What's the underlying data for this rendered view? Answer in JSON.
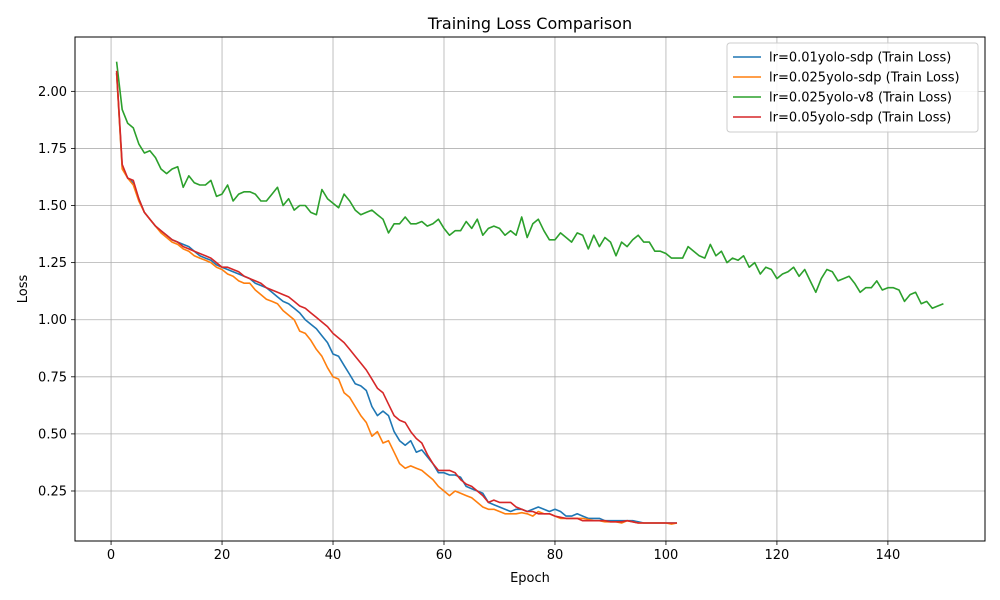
{
  "chart_data": {
    "type": "line",
    "title": "Training Loss Comparison",
    "xlabel": "Epoch",
    "ylabel": "Loss",
    "xlim": [
      -6.5,
      157.5
    ],
    "ylim": [
      0.031,
      2.238
    ],
    "xticks": [
      0,
      20,
      40,
      60,
      80,
      100,
      120,
      140
    ],
    "yticks": [
      0.25,
      0.5,
      0.75,
      1.0,
      1.25,
      1.5,
      1.75,
      2.0
    ],
    "ytick_labels": [
      "0.25",
      "0.50",
      "0.75",
      "1.00",
      "1.25",
      "1.50",
      "1.75",
      "2.00"
    ],
    "grid": true,
    "legend_position": "top-right",
    "series": [
      {
        "name": "lr=0.01yolo-sdp (Train Loss)",
        "color": "#1f77b4",
        "x": [
          1,
          2,
          3,
          4,
          5,
          6,
          7,
          8,
          9,
          10,
          11,
          12,
          13,
          14,
          15,
          16,
          17,
          18,
          19,
          20,
          21,
          22,
          23,
          24,
          25,
          26,
          27,
          28,
          29,
          30,
          31,
          32,
          33,
          34,
          35,
          36,
          37,
          38,
          39,
          40,
          41,
          42,
          43,
          44,
          45,
          46,
          47,
          48,
          49,
          50,
          51,
          52,
          53,
          54,
          55,
          56,
          57,
          58,
          59,
          60,
          61,
          62,
          63,
          64,
          65,
          66,
          67,
          68,
          69,
          70,
          71,
          72,
          73,
          74,
          75,
          76,
          77,
          78,
          79,
          80,
          81,
          82,
          83,
          84,
          85,
          86,
          87,
          88,
          89,
          90,
          91,
          92,
          93,
          94,
          95,
          96,
          97,
          98,
          99,
          100,
          101,
          102
        ],
        "y": [
          2.08,
          1.67,
          1.62,
          1.6,
          1.53,
          1.47,
          1.44,
          1.41,
          1.39,
          1.37,
          1.35,
          1.34,
          1.33,
          1.32,
          1.3,
          1.28,
          1.27,
          1.26,
          1.24,
          1.23,
          1.22,
          1.21,
          1.2,
          1.19,
          1.18,
          1.16,
          1.15,
          1.14,
          1.12,
          1.1,
          1.08,
          1.07,
          1.05,
          1.03,
          1.0,
          0.98,
          0.96,
          0.93,
          0.9,
          0.85,
          0.84,
          0.8,
          0.76,
          0.72,
          0.71,
          0.69,
          0.62,
          0.58,
          0.6,
          0.58,
          0.51,
          0.47,
          0.45,
          0.47,
          0.42,
          0.43,
          0.4,
          0.37,
          0.33,
          0.33,
          0.32,
          0.32,
          0.31,
          0.27,
          0.26,
          0.25,
          0.24,
          0.2,
          0.19,
          0.18,
          0.17,
          0.16,
          0.17,
          0.17,
          0.16,
          0.17,
          0.18,
          0.17,
          0.16,
          0.17,
          0.16,
          0.14,
          0.14,
          0.15,
          0.14,
          0.13,
          0.13,
          0.13,
          0.12,
          0.12,
          0.12,
          0.12,
          0.12,
          0.12,
          0.115,
          0.11,
          0.11,
          0.11,
          0.11,
          0.11,
          0.11,
          0.11
        ]
      },
      {
        "name": "lr=0.025yolo-sdp (Train Loss)",
        "color": "#ff7f0e",
        "x": [
          1,
          2,
          3,
          4,
          5,
          6,
          7,
          8,
          9,
          10,
          11,
          12,
          13,
          14,
          15,
          16,
          17,
          18,
          19,
          20,
          21,
          22,
          23,
          24,
          25,
          26,
          27,
          28,
          29,
          30,
          31,
          32,
          33,
          34,
          35,
          36,
          37,
          38,
          39,
          40,
          41,
          42,
          43,
          44,
          45,
          46,
          47,
          48,
          49,
          50,
          51,
          52,
          53,
          54,
          55,
          56,
          57,
          58,
          59,
          60,
          61,
          62,
          63,
          64,
          65,
          66,
          67,
          68,
          69,
          70,
          71,
          72,
          73,
          74,
          75,
          76,
          77,
          78,
          79,
          80,
          81,
          82,
          83,
          84,
          85,
          86,
          87,
          88,
          89,
          90,
          91,
          92,
          93,
          94,
          95,
          96,
          97,
          98,
          99,
          100,
          101,
          102
        ],
        "y": [
          2.08,
          1.66,
          1.62,
          1.59,
          1.52,
          1.47,
          1.44,
          1.41,
          1.38,
          1.36,
          1.34,
          1.33,
          1.31,
          1.3,
          1.28,
          1.27,
          1.26,
          1.25,
          1.23,
          1.22,
          1.2,
          1.19,
          1.17,
          1.16,
          1.16,
          1.13,
          1.11,
          1.09,
          1.08,
          1.07,
          1.04,
          1.02,
          1.0,
          0.95,
          0.94,
          0.91,
          0.87,
          0.84,
          0.79,
          0.75,
          0.74,
          0.68,
          0.66,
          0.62,
          0.58,
          0.55,
          0.49,
          0.51,
          0.46,
          0.47,
          0.42,
          0.37,
          0.35,
          0.36,
          0.35,
          0.34,
          0.32,
          0.3,
          0.27,
          0.25,
          0.23,
          0.25,
          0.24,
          0.23,
          0.22,
          0.2,
          0.18,
          0.17,
          0.17,
          0.16,
          0.15,
          0.15,
          0.15,
          0.155,
          0.15,
          0.14,
          0.16,
          0.15,
          0.15,
          0.14,
          0.13,
          0.13,
          0.13,
          0.13,
          0.13,
          0.125,
          0.12,
          0.12,
          0.115,
          0.115,
          0.115,
          0.11,
          0.12,
          0.115,
          0.11,
          0.11,
          0.11,
          0.11,
          0.11,
          0.11,
          0.105,
          0.11
        ]
      },
      {
        "name": "lr=0.025yolo-v8 (Train Loss)",
        "color": "#2ca02c",
        "x": [
          1,
          2,
          3,
          4,
          5,
          6,
          7,
          8,
          9,
          10,
          11,
          12,
          13,
          14,
          15,
          16,
          17,
          18,
          19,
          20,
          21,
          22,
          23,
          24,
          25,
          26,
          27,
          28,
          29,
          30,
          31,
          32,
          33,
          34,
          35,
          36,
          37,
          38,
          39,
          40,
          41,
          42,
          43,
          44,
          45,
          46,
          47,
          48,
          49,
          50,
          51,
          52,
          53,
          54,
          55,
          56,
          57,
          58,
          59,
          60,
          61,
          62,
          63,
          64,
          65,
          66,
          67,
          68,
          69,
          70,
          71,
          72,
          73,
          74,
          75,
          76,
          77,
          78,
          79,
          80,
          81,
          82,
          83,
          84,
          85,
          86,
          87,
          88,
          89,
          90,
          91,
          92,
          93,
          94,
          95,
          96,
          97,
          98,
          99,
          100,
          101,
          102,
          103,
          104,
          105,
          106,
          107,
          108,
          109,
          110,
          111,
          112,
          113,
          114,
          115,
          116,
          117,
          118,
          119,
          120,
          121,
          122,
          123,
          124,
          125,
          126,
          127,
          128,
          129,
          130,
          131,
          132,
          133,
          134,
          135,
          136,
          137,
          138,
          139,
          140,
          141,
          142,
          143,
          144,
          145,
          146,
          147,
          148,
          149,
          150
        ],
        "y": [
          2.13,
          1.92,
          1.86,
          1.84,
          1.77,
          1.73,
          1.74,
          1.71,
          1.66,
          1.64,
          1.66,
          1.67,
          1.58,
          1.63,
          1.6,
          1.59,
          1.59,
          1.61,
          1.54,
          1.55,
          1.59,
          1.52,
          1.55,
          1.56,
          1.56,
          1.55,
          1.52,
          1.52,
          1.55,
          1.58,
          1.5,
          1.53,
          1.48,
          1.5,
          1.5,
          1.47,
          1.46,
          1.57,
          1.53,
          1.51,
          1.49,
          1.55,
          1.52,
          1.48,
          1.46,
          1.47,
          1.48,
          1.46,
          1.44,
          1.38,
          1.42,
          1.42,
          1.45,
          1.42,
          1.42,
          1.43,
          1.41,
          1.42,
          1.44,
          1.4,
          1.37,
          1.39,
          1.39,
          1.43,
          1.4,
          1.44,
          1.37,
          1.4,
          1.41,
          1.4,
          1.37,
          1.39,
          1.37,
          1.45,
          1.36,
          1.42,
          1.44,
          1.39,
          1.35,
          1.35,
          1.38,
          1.36,
          1.34,
          1.38,
          1.37,
          1.31,
          1.37,
          1.32,
          1.36,
          1.34,
          1.28,
          1.34,
          1.32,
          1.35,
          1.37,
          1.34,
          1.34,
          1.3,
          1.3,
          1.29,
          1.27,
          1.27,
          1.27,
          1.32,
          1.3,
          1.28,
          1.27,
          1.33,
          1.28,
          1.3,
          1.25,
          1.27,
          1.26,
          1.28,
          1.23,
          1.25,
          1.2,
          1.23,
          1.22,
          1.18,
          1.2,
          1.21,
          1.23,
          1.19,
          1.22,
          1.17,
          1.12,
          1.18,
          1.22,
          1.21,
          1.17,
          1.18,
          1.19,
          1.16,
          1.12,
          1.14,
          1.14,
          1.17,
          1.13,
          1.14,
          1.14,
          1.13,
          1.08,
          1.11,
          1.12,
          1.07,
          1.08,
          1.05,
          1.06,
          1.07
        ]
      },
      {
        "name": "lr=0.05yolo-sdp (Train Loss)",
        "color": "#d62728",
        "x": [
          1,
          2,
          3,
          4,
          5,
          6,
          7,
          8,
          9,
          10,
          11,
          12,
          13,
          14,
          15,
          16,
          17,
          18,
          19,
          20,
          21,
          22,
          23,
          24,
          25,
          26,
          27,
          28,
          29,
          30,
          31,
          32,
          33,
          34,
          35,
          36,
          37,
          38,
          39,
          40,
          41,
          42,
          43,
          44,
          45,
          46,
          47,
          48,
          49,
          50,
          51,
          52,
          53,
          54,
          55,
          56,
          57,
          58,
          59,
          60,
          61,
          62,
          63,
          64,
          65,
          66,
          67,
          68,
          69,
          70,
          71,
          72,
          73,
          74,
          75,
          76,
          77,
          78,
          79,
          80,
          81,
          82,
          83,
          84,
          85,
          86,
          87,
          88,
          89,
          90,
          91,
          92,
          93,
          94,
          95,
          96,
          97,
          98,
          99,
          100,
          101,
          102
        ],
        "y": [
          2.09,
          1.68,
          1.62,
          1.61,
          1.53,
          1.47,
          1.44,
          1.41,
          1.39,
          1.37,
          1.35,
          1.34,
          1.32,
          1.31,
          1.3,
          1.29,
          1.28,
          1.27,
          1.25,
          1.23,
          1.23,
          1.22,
          1.21,
          1.19,
          1.18,
          1.17,
          1.16,
          1.14,
          1.13,
          1.12,
          1.11,
          1.1,
          1.08,
          1.06,
          1.05,
          1.03,
          1.01,
          0.99,
          0.97,
          0.94,
          0.92,
          0.9,
          0.87,
          0.84,
          0.81,
          0.78,
          0.74,
          0.7,
          0.68,
          0.63,
          0.58,
          0.56,
          0.55,
          0.51,
          0.48,
          0.46,
          0.41,
          0.37,
          0.34,
          0.34,
          0.34,
          0.33,
          0.3,
          0.28,
          0.27,
          0.25,
          0.23,
          0.2,
          0.21,
          0.2,
          0.2,
          0.2,
          0.18,
          0.17,
          0.16,
          0.16,
          0.15,
          0.15,
          0.15,
          0.14,
          0.135,
          0.13,
          0.13,
          0.13,
          0.12,
          0.12,
          0.12,
          0.12,
          0.12,
          0.115,
          0.115,
          0.115,
          0.12,
          0.115,
          0.11,
          0.11,
          0.11,
          0.11,
          0.11,
          0.11,
          0.11,
          0.11
        ]
      }
    ]
  }
}
